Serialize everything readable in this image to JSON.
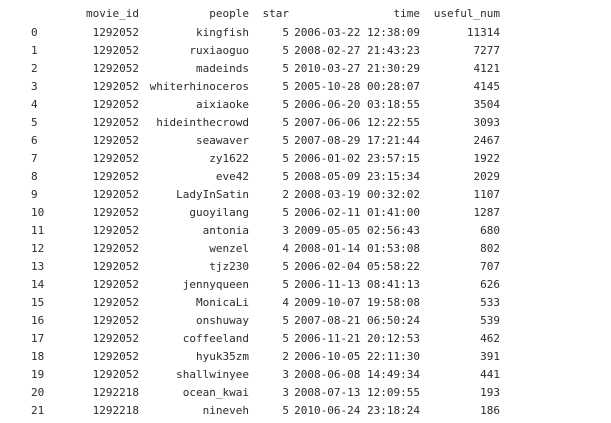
{
  "table": {
    "columns": [
      "movie_id",
      "people",
      "star",
      "time",
      "useful_num"
    ],
    "rows": [
      {
        "index": "0",
        "movie_id": "1292052",
        "people": "kingfish",
        "star": "5",
        "time": "2006-03-22 12:38:09",
        "useful_num": "11314"
      },
      {
        "index": "1",
        "movie_id": "1292052",
        "people": "ruxiaoguo",
        "star": "5",
        "time": "2008-02-27 21:43:23",
        "useful_num": "7277"
      },
      {
        "index": "2",
        "movie_id": "1292052",
        "people": "madeinds",
        "star": "5",
        "time": "2010-03-27 21:30:29",
        "useful_num": "4121"
      },
      {
        "index": "3",
        "movie_id": "1292052",
        "people": "whiterhinoceros",
        "star": "5",
        "time": "2005-10-28 00:28:07",
        "useful_num": "4145"
      },
      {
        "index": "4",
        "movie_id": "1292052",
        "people": "aixiaoke",
        "star": "5",
        "time": "2006-06-20 03:18:55",
        "useful_num": "3504"
      },
      {
        "index": "5",
        "movie_id": "1292052",
        "people": "hideinthecrowd",
        "star": "5",
        "time": "2007-06-06 12:22:55",
        "useful_num": "3093"
      },
      {
        "index": "6",
        "movie_id": "1292052",
        "people": "seawaver",
        "star": "5",
        "time": "2007-08-29 17:21:44",
        "useful_num": "2467"
      },
      {
        "index": "7",
        "movie_id": "1292052",
        "people": "zy1622",
        "star": "5",
        "time": "2006-01-02 23:57:15",
        "useful_num": "1922"
      },
      {
        "index": "8",
        "movie_id": "1292052",
        "people": "eve42",
        "star": "5",
        "time": "2008-05-09 23:15:34",
        "useful_num": "2029"
      },
      {
        "index": "9",
        "movie_id": "1292052",
        "people": "LadyInSatin",
        "star": "2",
        "time": "2008-03-19 00:32:02",
        "useful_num": "1107"
      },
      {
        "index": "10",
        "movie_id": "1292052",
        "people": "guoyilang",
        "star": "5",
        "time": "2006-02-11 01:41:00",
        "useful_num": "1287"
      },
      {
        "index": "11",
        "movie_id": "1292052",
        "people": "antonia",
        "star": "3",
        "time": "2009-05-05 02:56:43",
        "useful_num": "680"
      },
      {
        "index": "12",
        "movie_id": "1292052",
        "people": "wenzel",
        "star": "4",
        "time": "2008-01-14 01:53:08",
        "useful_num": "802"
      },
      {
        "index": "13",
        "movie_id": "1292052",
        "people": "tjz230",
        "star": "5",
        "time": "2006-02-04 05:58:22",
        "useful_num": "707"
      },
      {
        "index": "14",
        "movie_id": "1292052",
        "people": "jennyqueen",
        "star": "5",
        "time": "2006-11-13 08:41:13",
        "useful_num": "626"
      },
      {
        "index": "15",
        "movie_id": "1292052",
        "people": "MonicaLi",
        "star": "4",
        "time": "2009-10-07 19:58:08",
        "useful_num": "533"
      },
      {
        "index": "16",
        "movie_id": "1292052",
        "people": "onshuway",
        "star": "5",
        "time": "2007-08-21 06:50:24",
        "useful_num": "539"
      },
      {
        "index": "17",
        "movie_id": "1292052",
        "people": "coffeeland",
        "star": "5",
        "time": "2006-11-21 20:12:53",
        "useful_num": "462"
      },
      {
        "index": "18",
        "movie_id": "1292052",
        "people": "hyuk35zm",
        "star": "2",
        "time": "2006-10-05 22:11:30",
        "useful_num": "391"
      },
      {
        "index": "19",
        "movie_id": "1292052",
        "people": "shallwinyee",
        "star": "3",
        "time": "2008-06-08 14:49:34",
        "useful_num": "441"
      },
      {
        "index": "20",
        "movie_id": "1292218",
        "people": "ocean_kwai",
        "star": "3",
        "time": "2008-07-13 12:09:55",
        "useful_num": "193"
      },
      {
        "index": "21",
        "movie_id": "1292218",
        "people": "nineveh",
        "star": "5",
        "time": "2010-06-24 23:18:24",
        "useful_num": "186"
      }
    ]
  }
}
